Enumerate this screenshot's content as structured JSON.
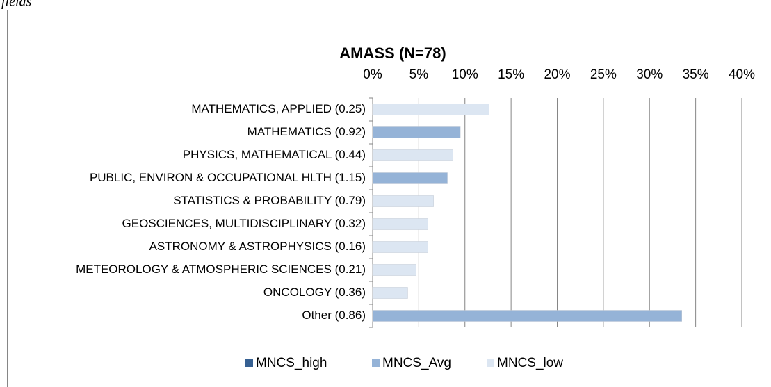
{
  "caption": "fields",
  "chart_data": {
    "type": "hbar",
    "title": "AMASS (N=78)",
    "categories": [
      "MATHEMATICS, APPLIED (0.25)",
      "MATHEMATICS (0.92)",
      "PHYSICS, MATHEMATICAL (0.44)",
      "PUBLIC, ENVIRON & OCCUPATIONAL HLTH (1.15)",
      "STATISTICS & PROBABILITY (0.79)",
      "GEOSCIENCES, MULTIDISCIPLINARY (0.32)",
      "ASTRONOMY & ASTROPHYSICS (0.16)",
      "METEOROLOGY & ATMOSPHERIC SCIENCES (0.21)",
      "ONCOLOGY (0.36)",
      "Other (0.86)"
    ],
    "series": [
      {
        "name": "MNCS_high",
        "color": "#366092",
        "values": [
          null,
          null,
          null,
          null,
          null,
          null,
          null,
          null,
          null,
          null
        ]
      },
      {
        "name": "MNCS_Avg",
        "color": "#95b3d7",
        "values": [
          null,
          9.5,
          null,
          8.1,
          null,
          null,
          null,
          null,
          null,
          33.5
        ]
      },
      {
        "name": "MNCS_low",
        "color": "#dce6f2",
        "values": [
          12.6,
          null,
          8.7,
          null,
          6.6,
          6.0,
          6.0,
          4.7,
          3.8,
          null
        ]
      }
    ],
    "xlim": [
      0,
      40
    ],
    "xticks": [
      {
        "value": 0,
        "label": "0%"
      },
      {
        "value": 5,
        "label": "5%"
      },
      {
        "value": 10,
        "label": "10%"
      },
      {
        "value": 15,
        "label": "15%"
      },
      {
        "value": 20,
        "label": "20%"
      },
      {
        "value": 25,
        "label": "25%"
      },
      {
        "value": 30,
        "label": "30%"
      },
      {
        "value": 35,
        "label": "35%"
      },
      {
        "value": 40,
        "label": "40%"
      }
    ],
    "grid": true,
    "legend": "bottom"
  }
}
